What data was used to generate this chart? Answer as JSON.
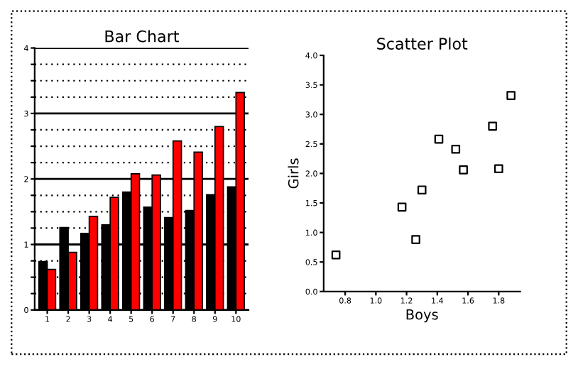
{
  "chart_data": [
    {
      "type": "bar",
      "title": "Bar Chart",
      "categories": [
        "1",
        "2",
        "3",
        "4",
        "5",
        "6",
        "7",
        "8",
        "9",
        "10"
      ],
      "series": [
        {
          "color": "#000000",
          "values": [
            0.74,
            1.26,
            1.17,
            1.3,
            1.8,
            1.57,
            1.41,
            1.52,
            1.76,
            1.88
          ]
        },
        {
          "color": "#ff0000",
          "values": [
            0.62,
            0.88,
            1.43,
            1.72,
            2.08,
            2.06,
            2.58,
            2.41,
            2.8,
            3.32
          ]
        }
      ],
      "ylim": [
        0,
        4
      ],
      "yticks": [
        0,
        {
          "value": 0.25,
          "label": null
        },
        {
          "value": 0.5,
          "label": null
        },
        {
          "value": 0.75,
          "label": null
        },
        1,
        {
          "value": 1.25,
          "label": null
        },
        {
          "value": 1.5,
          "label": null
        },
        {
          "value": 1.75,
          "label": null
        },
        2,
        {
          "value": 2.25,
          "label": null
        },
        {
          "value": 2.5,
          "label": null
        },
        {
          "value": 2.75,
          "label": null
        },
        3,
        {
          "value": 3.25,
          "label": null
        },
        {
          "value": 3.5,
          "label": null
        },
        {
          "value": 3.75,
          "label": null
        },
        4
      ],
      "grid": "y",
      "legend": false
    },
    {
      "type": "scatter",
      "title": "Scatter Plot",
      "xlabel": "Boys",
      "ylabel": "Girls",
      "series": [
        {
          "color": "#000000",
          "x": [
            0.74,
            1.26,
            1.17,
            1.3,
            1.8,
            1.57,
            1.41,
            1.52,
            1.76,
            1.88
          ],
          "values": [
            0.62,
            0.88,
            1.43,
            1.72,
            2.08,
            2.06,
            2.58,
            2.41,
            2.8,
            3.32
          ]
        }
      ],
      "xlim": [
        0.66,
        1.94
      ],
      "xticks": [
        {
          "value": 0.8,
          "label": "0.8"
        },
        {
          "value": 1.0,
          "label": "1.0"
        },
        {
          "value": 1.2,
          "label": "1.2"
        },
        {
          "value": 1.4,
          "label": "1.4"
        },
        {
          "value": 1.6,
          "label": "1.6"
        },
        {
          "value": 1.8,
          "label": "1.8"
        }
      ],
      "ylim": [
        0,
        4
      ],
      "yticks": [
        {
          "value": 0,
          "label": "0.0"
        },
        {
          "value": 0.5,
          "label": "0.5"
        },
        {
          "value": 1.0,
          "label": "1.0"
        },
        {
          "value": 1.5,
          "label": "1.5"
        },
        {
          "value": 2.0,
          "label": "2.0"
        },
        {
          "value": 2.5,
          "label": "2.5"
        },
        {
          "value": 3.0,
          "label": "3.0"
        },
        {
          "value": 3.5,
          "label": "3.5"
        },
        {
          "value": 4.0,
          "label": "4.0"
        }
      ],
      "marker": "square",
      "grid": false,
      "legend": false
    }
  ]
}
